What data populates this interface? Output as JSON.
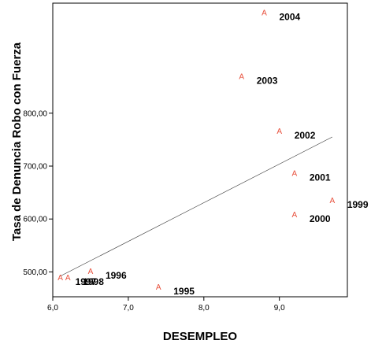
{
  "chart_data": {
    "type": "scatter",
    "xlabel": "DESEMPLEO",
    "ylabel": "Tasa de Denuncia Robo con Fuerza",
    "xlim": [
      6.0,
      9.9
    ],
    "ylim": [
      453,
      1008
    ],
    "x_ticks": [
      "6,0",
      "7,0",
      "8,0",
      "9,0"
    ],
    "x_tick_values": [
      6.0,
      7.0,
      8.0,
      9.0
    ],
    "y_ticks": [
      "500,00",
      "600,00",
      "700,00",
      "800,00"
    ],
    "y_tick_values": [
      500,
      600,
      700,
      800
    ],
    "marker_glyph": "A",
    "marker_color": "#e8503c",
    "grid": false,
    "points": [
      {
        "label": "1995",
        "x": 7.4,
        "y": 472
      },
      {
        "label": "1996",
        "x": 6.5,
        "y": 502
      },
      {
        "label": "1997",
        "x": 6.1,
        "y": 490
      },
      {
        "label": "1998",
        "x": 6.2,
        "y": 490
      },
      {
        "label": "1999",
        "x": 9.7,
        "y": 636
      },
      {
        "label": "2000",
        "x": 9.2,
        "y": 609
      },
      {
        "label": "2001",
        "x": 9.2,
        "y": 687
      },
      {
        "label": "2002",
        "x": 9.0,
        "y": 767
      },
      {
        "label": "2003",
        "x": 8.5,
        "y": 870
      },
      {
        "label": "2004",
        "x": 8.8,
        "y": 991
      }
    ],
    "fit_line": {
      "x": [
        6.1,
        9.7
      ],
      "y": [
        492,
        755
      ]
    }
  }
}
